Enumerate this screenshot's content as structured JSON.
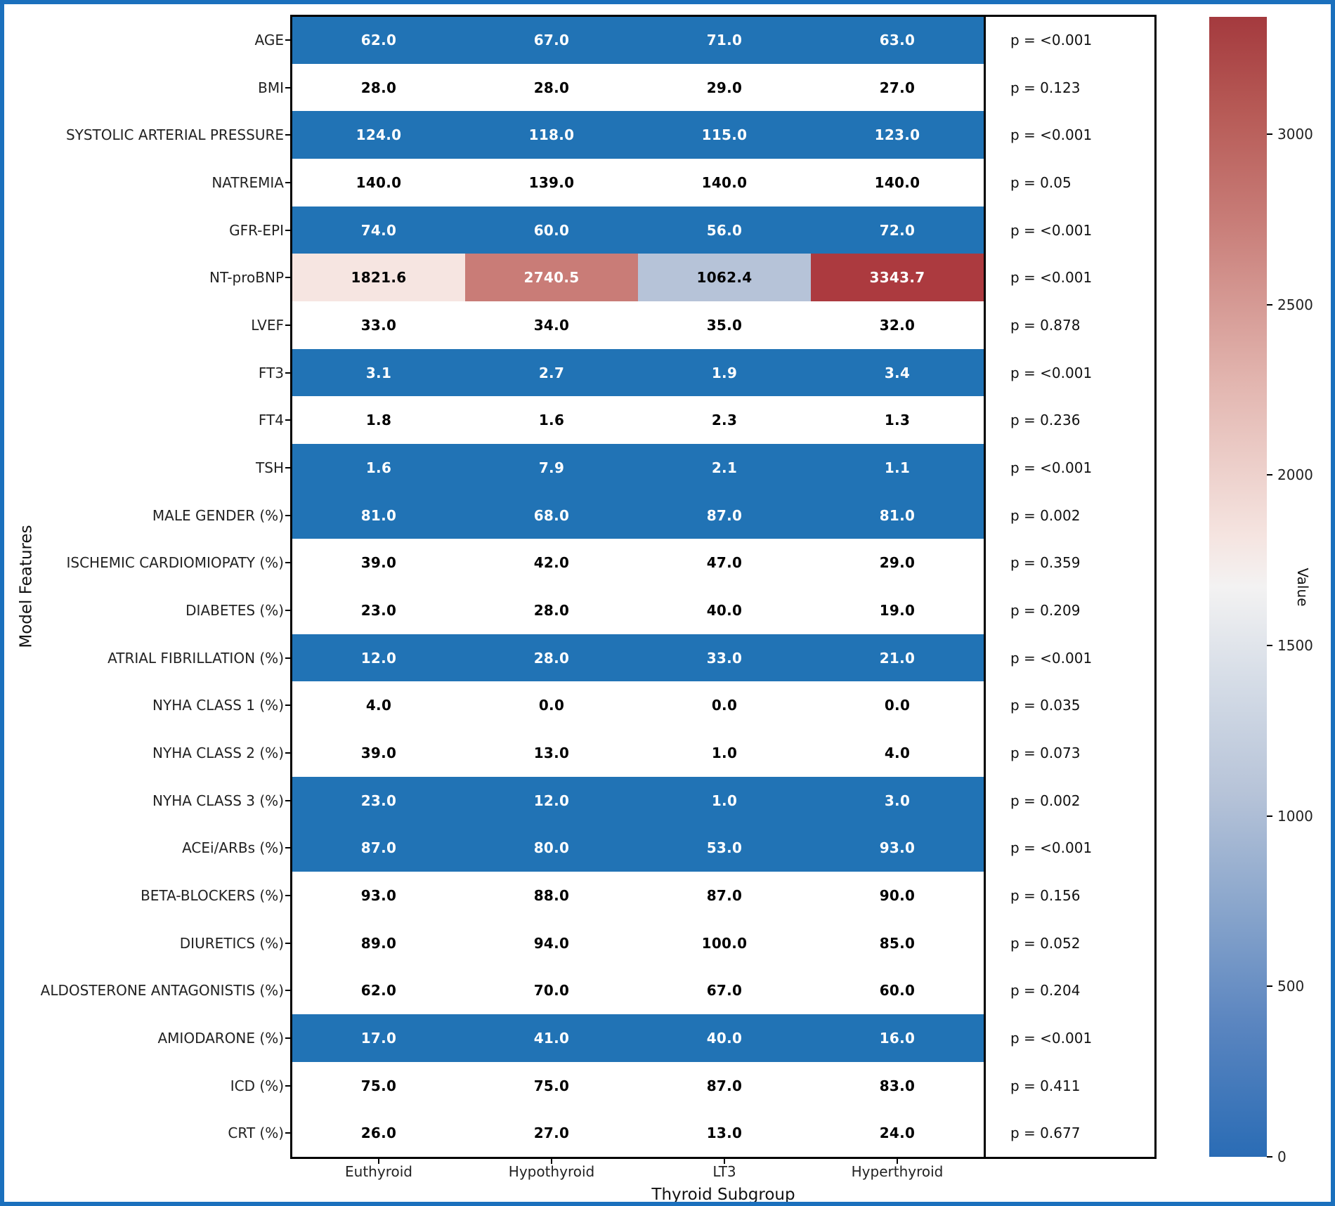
{
  "figure": {
    "frame_color": "#1b70bd",
    "background": "#ffffff"
  },
  "chart_data": {
    "type": "heatmap",
    "xlabel": "Thyroid Subgroup",
    "ylabel": "Model Features",
    "x_categories": [
      "Euthyroid",
      "Hypothyroid",
      "LT3",
      "Hyperthyroid"
    ],
    "p_prefix": "p = ",
    "colors": {
      "significant_cell_blue": "#2173b5",
      "nonsignificant_cell": "#ffffff",
      "ntprobnp_cell_colors": [
        "#f6e5e1",
        "#c97c77",
        "#b6c3d8",
        "#ac3a3f"
      ]
    },
    "rows": [
      {
        "label": "AGE",
        "values": [
          "62.0",
          "67.0",
          "71.0",
          "63.0"
        ],
        "p": "<0.001",
        "significant": true,
        "cell_colors": null
      },
      {
        "label": "BMI",
        "values": [
          "28.0",
          "28.0",
          "29.0",
          "27.0"
        ],
        "p": "0.123",
        "significant": false,
        "cell_colors": null
      },
      {
        "label": "SYSTOLIC ARTERIAL PRESSURE",
        "values": [
          "124.0",
          "118.0",
          "115.0",
          "123.0"
        ],
        "p": "<0.001",
        "significant": true,
        "cell_colors": null
      },
      {
        "label": "NATREMIA",
        "values": [
          "140.0",
          "139.0",
          "140.0",
          "140.0"
        ],
        "p": "0.05",
        "significant": false,
        "cell_colors": null
      },
      {
        "label": "GFR-EPI",
        "values": [
          "74.0",
          "60.0",
          "56.0",
          "72.0"
        ],
        "p": "<0.001",
        "significant": true,
        "cell_colors": null
      },
      {
        "label": "NT-proBNP",
        "values": [
          "1821.6",
          "2740.5",
          "1062.4",
          "3343.7"
        ],
        "p": "<0.001",
        "significant": true,
        "cell_colors": [
          "#f6e5e1",
          "#c97c77",
          "#b6c3d8",
          "#ac3a3f"
        ]
      },
      {
        "label": "LVEF",
        "values": [
          "33.0",
          "34.0",
          "35.0",
          "32.0"
        ],
        "p": "0.878",
        "significant": false,
        "cell_colors": null
      },
      {
        "label": "FT3",
        "values": [
          "3.1",
          "2.7",
          "1.9",
          "3.4"
        ],
        "p": "<0.001",
        "significant": true,
        "cell_colors": null
      },
      {
        "label": "FT4",
        "values": [
          "1.8",
          "1.6",
          "2.3",
          "1.3"
        ],
        "p": "0.236",
        "significant": false,
        "cell_colors": null
      },
      {
        "label": "TSH",
        "values": [
          "1.6",
          "7.9",
          "2.1",
          "1.1"
        ],
        "p": "<0.001",
        "significant": true,
        "cell_colors": null
      },
      {
        "label": "MALE GENDER (%)",
        "values": [
          "81.0",
          "68.0",
          "87.0",
          "81.0"
        ],
        "p": "0.002",
        "significant": true,
        "cell_colors": null
      },
      {
        "label": "ISCHEMIC CARDIOMIOPATY (%)",
        "values": [
          "39.0",
          "42.0",
          "47.0",
          "29.0"
        ],
        "p": "0.359",
        "significant": false,
        "cell_colors": null
      },
      {
        "label": "DIABETES (%)",
        "values": [
          "23.0",
          "28.0",
          "40.0",
          "19.0"
        ],
        "p": "0.209",
        "significant": false,
        "cell_colors": null
      },
      {
        "label": "ATRIAL FIBRILLATION (%)",
        "values": [
          "12.0",
          "28.0",
          "33.0",
          "21.0"
        ],
        "p": "<0.001",
        "significant": true,
        "cell_colors": null
      },
      {
        "label": "NYHA CLASS 1 (%)",
        "values": [
          "4.0",
          "0.0",
          "0.0",
          "0.0"
        ],
        "p": "0.035",
        "significant": false,
        "cell_colors": null
      },
      {
        "label": "NYHA CLASS 2 (%)",
        "values": [
          "39.0",
          "13.0",
          "1.0",
          "4.0"
        ],
        "p": "0.073",
        "significant": false,
        "cell_colors": null
      },
      {
        "label": "NYHA CLASS 3 (%)",
        "values": [
          "23.0",
          "12.0",
          "1.0",
          "3.0"
        ],
        "p": "0.002",
        "significant": true,
        "cell_colors": null
      },
      {
        "label": "ACEi/ARBs (%)",
        "values": [
          "87.0",
          "80.0",
          "53.0",
          "93.0"
        ],
        "p": "<0.001",
        "significant": true,
        "cell_colors": null
      },
      {
        "label": "BETA-BLOCKERS (%)",
        "values": [
          "93.0",
          "88.0",
          "87.0",
          "90.0"
        ],
        "p": "0.156",
        "significant": false,
        "cell_colors": null
      },
      {
        "label": "DIURETICS (%)",
        "values": [
          "89.0",
          "94.0",
          "100.0",
          "85.0"
        ],
        "p": "0.052",
        "significant": false,
        "cell_colors": null
      },
      {
        "label": "ALDOSTERONE ANTAGONISTIS (%)",
        "values": [
          "62.0",
          "70.0",
          "67.0",
          "60.0"
        ],
        "p": "0.204",
        "significant": false,
        "cell_colors": null
      },
      {
        "label": "AMIODARONE (%)",
        "values": [
          "17.0",
          "41.0",
          "40.0",
          "16.0"
        ],
        "p": "<0.001",
        "significant": true,
        "cell_colors": null
      },
      {
        "label": "ICD (%)",
        "values": [
          "75.0",
          "75.0",
          "87.0",
          "83.0"
        ],
        "p": "0.411",
        "significant": false,
        "cell_colors": null
      },
      {
        "label": "CRT (%)",
        "values": [
          "26.0",
          "27.0",
          "13.0",
          "24.0"
        ],
        "p": "0.677",
        "significant": false,
        "cell_colors": null
      }
    ],
    "colorbar": {
      "label": "Value",
      "vmin": 0,
      "vmax": 3343.7,
      "ticks": [
        0,
        500,
        1000,
        1500,
        2000,
        2500,
        3000
      ],
      "top_color": "#a43a3e",
      "mid_color": "#f3f2f2",
      "bottom_color": "#2a6cb5"
    }
  }
}
